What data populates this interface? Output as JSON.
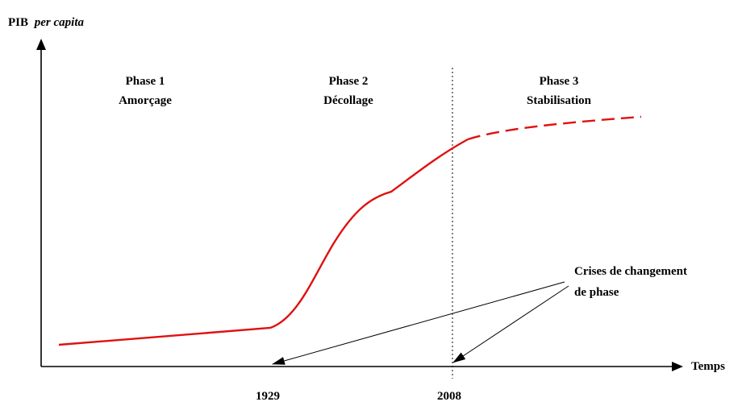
{
  "axes": {
    "y_label_main": "PIB",
    "y_label_italic": "per capita",
    "x_label": "Temps"
  },
  "phases": [
    {
      "title": "Phase 1",
      "subtitle": "Amorçage"
    },
    {
      "title": "Phase 2",
      "subtitle": "Décollage"
    },
    {
      "title": "Phase 3",
      "subtitle": "Stabilisation"
    }
  ],
  "annotation": {
    "line1": "Crises de changement",
    "line2": "de phase"
  },
  "years": [
    "1929",
    "2008"
  ],
  "colors": {
    "curve": "#e01010",
    "axis": "#000000",
    "background": "#ffffff"
  }
}
